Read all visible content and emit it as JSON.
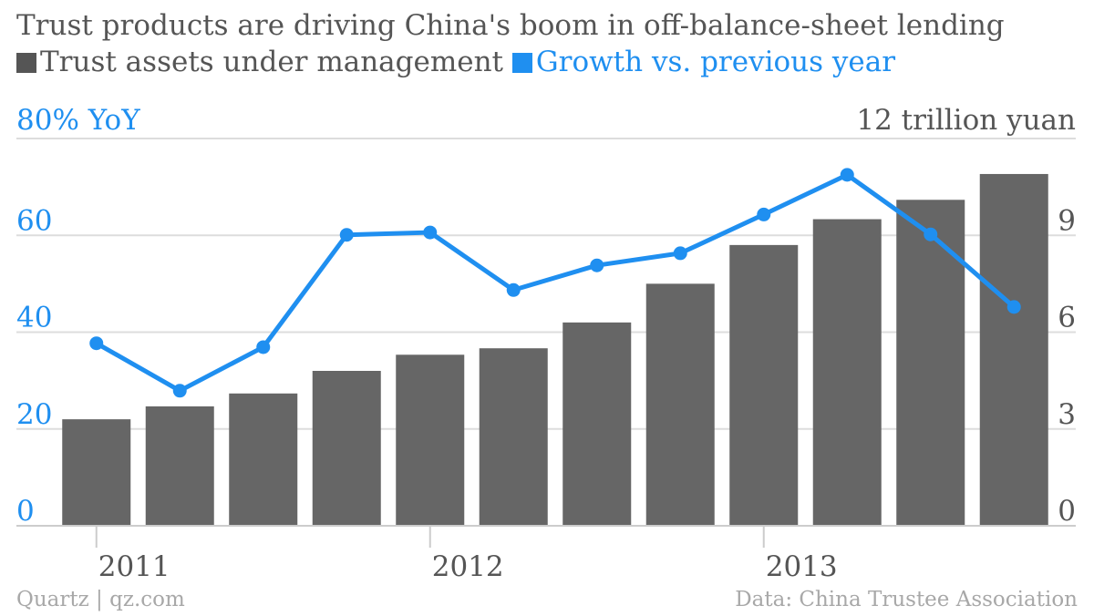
{
  "chart_data": {
    "type": "bar+line",
    "title": "Trust products are driving China's boom in off-balance-sheet lending",
    "legend": [
      {
        "name": "Trust assets under management",
        "color": "#666666"
      },
      {
        "name": "Growth vs. previous year",
        "color": "#1f8ff0"
      }
    ],
    "left_axis": {
      "label": "80% YoY",
      "ticks": [
        "0",
        "20",
        "40",
        "60"
      ],
      "range": [
        0,
        80
      ]
    },
    "right_axis": {
      "label": "12 trillion yuan",
      "ticks": [
        "0",
        "3",
        "6",
        "9"
      ],
      "range": [
        0,
        12
      ]
    },
    "x_tick_labels": [
      "2011",
      "2012",
      "2013"
    ],
    "x_tick_positions": [
      0.5,
      4.5,
      8.5
    ],
    "bars": {
      "name": "Trust assets under management",
      "axis": "right",
      "values": [
        3.3,
        3.7,
        4.1,
        4.8,
        5.3,
        5.5,
        6.3,
        7.5,
        8.7,
        9.5,
        10.1,
        10.9
      ]
    },
    "line": {
      "name": "Growth vs. previous year",
      "axis": "left",
      "values": [
        37.7,
        27.9,
        36.9,
        60.1,
        60.6,
        48.7,
        53.8,
        56.3,
        64.3,
        72.5,
        60.2,
        45.2
      ]
    },
    "grid": true
  },
  "footer": {
    "source_left": "Quartz | qz.com",
    "source_right": "Data: China Trustee Association"
  },
  "colors": {
    "bar": "#666666",
    "line": "#1f8ff0",
    "grid": "#dddddd",
    "axis_text_gray": "#555555",
    "footer_text": "#a8a8a8"
  }
}
